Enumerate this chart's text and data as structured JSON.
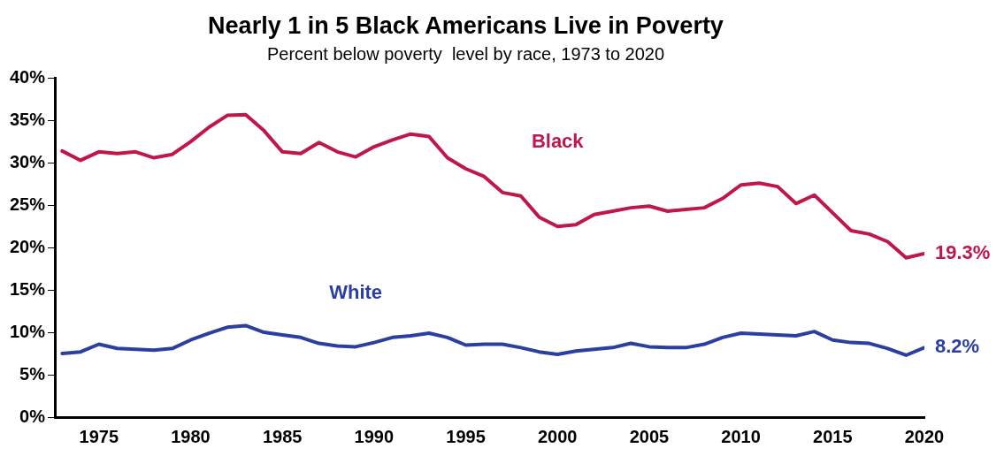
{
  "chart_data": {
    "type": "line",
    "title": "Nearly 1 in 5 Black Americans Live in Poverty",
    "subtitle": "Percent below poverty  level by race, 1973 to 2020",
    "x": [
      1973,
      1974,
      1975,
      1976,
      1977,
      1978,
      1979,
      1980,
      1981,
      1982,
      1983,
      1984,
      1985,
      1986,
      1987,
      1988,
      1989,
      1990,
      1991,
      1992,
      1993,
      1994,
      1995,
      1996,
      1997,
      1998,
      1999,
      2000,
      2001,
      2002,
      2003,
      2004,
      2005,
      2006,
      2007,
      2008,
      2009,
      2010,
      2011,
      2012,
      2013,
      2014,
      2015,
      2016,
      2017,
      2018,
      2019,
      2020
    ],
    "series": [
      {
        "name": "Black",
        "color": "#c0174a",
        "values": [
          31.4,
          30.3,
          31.3,
          31.1,
          31.3,
          30.6,
          31.0,
          32.5,
          34.2,
          35.6,
          35.7,
          33.8,
          31.3,
          31.1,
          32.4,
          31.3,
          30.7,
          31.9,
          32.7,
          33.4,
          33.1,
          30.6,
          29.3,
          28.4,
          26.5,
          26.1,
          23.6,
          22.5,
          22.7,
          23.9,
          24.3,
          24.7,
          24.9,
          24.3,
          24.5,
          24.7,
          25.8,
          27.4,
          27.6,
          27.2,
          25.2,
          26.2,
          24.1,
          22.0,
          21.6,
          20.7,
          18.8,
          19.3
        ],
        "value_labels": [
          null,
          null,
          null,
          null,
          null,
          null,
          null,
          null,
          null,
          null,
          null,
          null,
          null,
          null,
          null,
          null,
          null,
          null,
          null,
          null,
          null,
          null,
          null,
          null,
          null,
          null,
          null,
          null,
          null,
          null,
          null,
          null,
          null,
          null,
          null,
          null,
          null,
          null,
          null,
          null,
          null,
          null,
          null,
          null,
          null,
          null,
          null,
          "19.3%"
        ]
      },
      {
        "name": "White",
        "color": "#2a3f9f",
        "values": [
          7.5,
          7.7,
          8.6,
          8.1,
          8.0,
          7.9,
          8.1,
          9.1,
          9.9,
          10.6,
          10.8,
          10.0,
          9.7,
          9.4,
          8.7,
          8.4,
          8.3,
          8.8,
          9.4,
          9.6,
          9.9,
          9.4,
          8.5,
          8.6,
          8.6,
          8.2,
          7.7,
          7.4,
          7.8,
          8.0,
          8.2,
          8.7,
          8.3,
          8.2,
          8.2,
          8.6,
          9.4,
          9.9,
          9.8,
          9.7,
          9.6,
          10.1,
          9.1,
          8.8,
          8.7,
          8.1,
          7.3,
          8.2
        ],
        "value_labels": [
          null,
          null,
          null,
          null,
          null,
          null,
          null,
          null,
          null,
          null,
          null,
          null,
          null,
          null,
          null,
          null,
          null,
          null,
          null,
          null,
          null,
          null,
          null,
          null,
          null,
          null,
          null,
          null,
          null,
          null,
          null,
          null,
          null,
          null,
          null,
          null,
          null,
          null,
          null,
          null,
          null,
          null,
          null,
          null,
          null,
          null,
          null,
          "8.2%"
        ]
      }
    ],
    "xlim": [
      1972.6,
      2020
    ],
    "xticks": [
      1975,
      1980,
      1985,
      1990,
      1995,
      2000,
      2005,
      2010,
      2015,
      2020
    ],
    "ylim": [
      0,
      40
    ],
    "yticks": [
      {
        "value": 0,
        "label": "0%"
      },
      {
        "value": 5,
        "label": "5%"
      },
      {
        "value": 10,
        "label": "10%"
      },
      {
        "value": 15,
        "label": "15%"
      },
      {
        "value": 20,
        "label": "20%"
      },
      {
        "value": 25,
        "label": "25%"
      },
      {
        "value": 30,
        "label": "30%"
      },
      {
        "value": 35,
        "label": "35%"
      },
      {
        "value": 40,
        "label": "40%"
      }
    ],
    "grid": false,
    "legend": false,
    "marker": "none",
    "line_style": "solid"
  }
}
